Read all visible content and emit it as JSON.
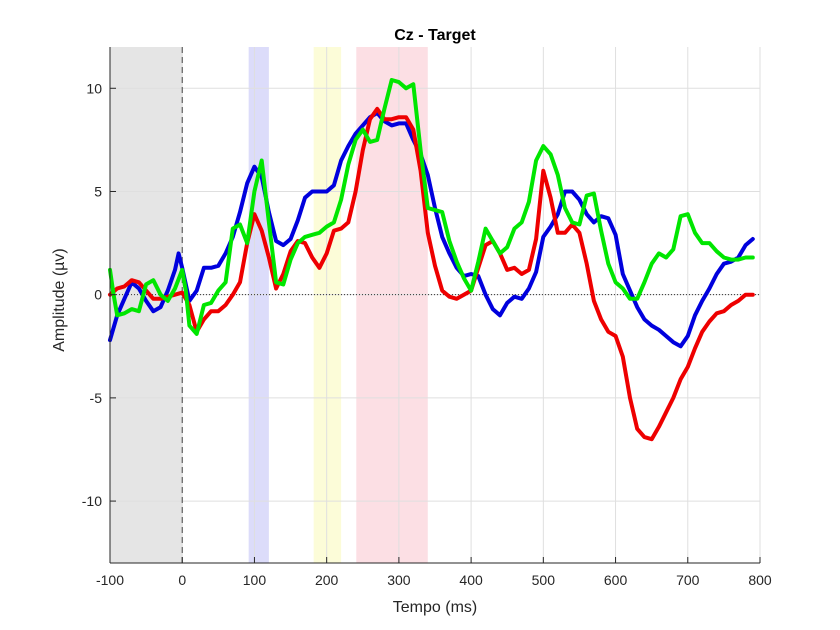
{
  "chart_data": {
    "type": "line",
    "title": "Cz - Target",
    "xlabel": "Tempo (ms)",
    "ylabel": "Amplitude (µv)",
    "xlim": [
      -100,
      800
    ],
    "ylim": [
      -13,
      12
    ],
    "xticks": [
      -100,
      0,
      100,
      200,
      300,
      400,
      500,
      600,
      700,
      800
    ],
    "yticks": [
      -10,
      -5,
      0,
      5,
      10
    ],
    "xtick_labels": [
      "-100",
      "0",
      "100",
      "200",
      "300",
      "400",
      "500",
      "600",
      "700",
      "800"
    ],
    "ytick_labels": [
      "-10",
      "-5",
      "0",
      "5",
      "10"
    ],
    "grid": true,
    "baseline_window": {
      "x0": -100,
      "x1": 0,
      "color": "#e5e5e5"
    },
    "highlight_windows": [
      {
        "x0": 92,
        "x1": 120,
        "color": "#dcdcfa"
      },
      {
        "x0": 182,
        "x1": 220,
        "color": "#fcfcd8"
      },
      {
        "x0": 241,
        "x1": 340,
        "color": "#fcdfe4"
      }
    ],
    "series": [
      {
        "color": "#0000dd",
        "points": [
          [
            -100,
            -2.2
          ],
          [
            -90,
            -1
          ],
          [
            -80,
            -0.2
          ],
          [
            -70,
            0.6
          ],
          [
            -60,
            0.3
          ],
          [
            -50,
            -0.3
          ],
          [
            -40,
            -0.8
          ],
          [
            -30,
            -0.6
          ],
          [
            -20,
            0.2
          ],
          [
            -10,
            1.2
          ],
          [
            -5,
            2
          ],
          [
            0,
            1.3
          ],
          [
            10,
            -0.3
          ],
          [
            20,
            0.2
          ],
          [
            30,
            1.3
          ],
          [
            40,
            1.3
          ],
          [
            50,
            1.4
          ],
          [
            60,
            2
          ],
          [
            70,
            2.8
          ],
          [
            80,
            4
          ],
          [
            90,
            5.4
          ],
          [
            100,
            6.2
          ],
          [
            110,
            5.7
          ],
          [
            120,
            4
          ],
          [
            130,
            2.6
          ],
          [
            140,
            2.4
          ],
          [
            150,
            2.7
          ],
          [
            160,
            3.6
          ],
          [
            170,
            4.7
          ],
          [
            180,
            5
          ],
          [
            200,
            5
          ],
          [
            210,
            5.3
          ],
          [
            220,
            6.5
          ],
          [
            230,
            7.2
          ],
          [
            240,
            7.8
          ],
          [
            250,
            8.2
          ],
          [
            260,
            8.6
          ],
          [
            270,
            8.8
          ],
          [
            280,
            8.4
          ],
          [
            290,
            8.2
          ],
          [
            300,
            8.3
          ],
          [
            310,
            8.3
          ],
          [
            320,
            7.5
          ],
          [
            330,
            6.8
          ],
          [
            340,
            5.8
          ],
          [
            350,
            4.2
          ],
          [
            360,
            2.8
          ],
          [
            370,
            2
          ],
          [
            380,
            1.3
          ],
          [
            390,
            0.9
          ],
          [
            400,
            1
          ],
          [
            410,
            0.9
          ],
          [
            420,
            0
          ],
          [
            430,
            -0.7
          ],
          [
            440,
            -1
          ],
          [
            450,
            -0.4
          ],
          [
            460,
            -0.1
          ],
          [
            470,
            -0.2
          ],
          [
            480,
            0.3
          ],
          [
            490,
            1.1
          ],
          [
            500,
            2.8
          ],
          [
            510,
            3.3
          ],
          [
            520,
            3.9
          ],
          [
            530,
            5
          ],
          [
            540,
            5
          ],
          [
            550,
            4.6
          ],
          [
            560,
            3.9
          ],
          [
            570,
            3.5
          ],
          [
            580,
            3.8
          ],
          [
            590,
            3.7
          ],
          [
            600,
            2.9
          ],
          [
            610,
            1
          ],
          [
            620,
            0.2
          ],
          [
            630,
            -0.6
          ],
          [
            640,
            -1.2
          ],
          [
            650,
            -1.5
          ],
          [
            660,
            -1.7
          ],
          [
            670,
            -2
          ],
          [
            680,
            -2.3
          ],
          [
            690,
            -2.5
          ],
          [
            700,
            -2
          ],
          [
            710,
            -1
          ],
          [
            720,
            -0.3
          ],
          [
            730,
            0.3
          ],
          [
            740,
            1
          ],
          [
            750,
            1.5
          ],
          [
            760,
            1.6
          ],
          [
            770,
            1.8
          ],
          [
            780,
            2.4
          ],
          [
            790,
            2.7
          ]
        ]
      },
      {
        "color": "#ee0000",
        "points": [
          [
            -100,
            0
          ],
          [
            -90,
            0.3
          ],
          [
            -80,
            0.4
          ],
          [
            -70,
            0.7
          ],
          [
            -60,
            0.6
          ],
          [
            -50,
            0.2
          ],
          [
            -40,
            -0.2
          ],
          [
            -30,
            -0.2
          ],
          [
            -20,
            -0.1
          ],
          [
            -10,
            0
          ],
          [
            0,
            0.1
          ],
          [
            10,
            -0.5
          ],
          [
            20,
            -1.8
          ],
          [
            30,
            -1.2
          ],
          [
            40,
            -0.8
          ],
          [
            50,
            -0.8
          ],
          [
            60,
            -0.5
          ],
          [
            70,
            0
          ],
          [
            80,
            0.6
          ],
          [
            90,
            2.5
          ],
          [
            100,
            3.9
          ],
          [
            110,
            3.1
          ],
          [
            120,
            1.8
          ],
          [
            130,
            0.3
          ],
          [
            140,
            1
          ],
          [
            150,
            2.1
          ],
          [
            160,
            2.6
          ],
          [
            170,
            2.5
          ],
          [
            180,
            1.8
          ],
          [
            190,
            1.3
          ],
          [
            200,
            2
          ],
          [
            210,
            3.1
          ],
          [
            220,
            3.2
          ],
          [
            230,
            3.5
          ],
          [
            240,
            5
          ],
          [
            250,
            7
          ],
          [
            260,
            8.5
          ],
          [
            270,
            9
          ],
          [
            280,
            8.5
          ],
          [
            290,
            8.5
          ],
          [
            300,
            8.6
          ],
          [
            310,
            8.6
          ],
          [
            320,
            8
          ],
          [
            330,
            6
          ],
          [
            340,
            3
          ],
          [
            350,
            1.4
          ],
          [
            360,
            0.2
          ],
          [
            370,
            -0.1
          ],
          [
            380,
            -0.2
          ],
          [
            390,
            0
          ],
          [
            400,
            0.2
          ],
          [
            410,
            1.3
          ],
          [
            420,
            2.4
          ],
          [
            430,
            2.6
          ],
          [
            440,
            2
          ],
          [
            450,
            1.2
          ],
          [
            460,
            1.3
          ],
          [
            470,
            1
          ],
          [
            480,
            1.2
          ],
          [
            490,
            2.7
          ],
          [
            500,
            6
          ],
          [
            510,
            4.7
          ],
          [
            520,
            3
          ],
          [
            530,
            3
          ],
          [
            540,
            3.4
          ],
          [
            550,
            3
          ],
          [
            560,
            1.5
          ],
          [
            570,
            -0.3
          ],
          [
            580,
            -1.2
          ],
          [
            590,
            -1.8
          ],
          [
            600,
            -2
          ],
          [
            610,
            -3
          ],
          [
            620,
            -5
          ],
          [
            630,
            -6.5
          ],
          [
            640,
            -6.9
          ],
          [
            650,
            -7
          ],
          [
            660,
            -6.4
          ],
          [
            670,
            -5.7
          ],
          [
            680,
            -5
          ],
          [
            690,
            -4.1
          ],
          [
            700,
            -3.5
          ],
          [
            710,
            -2.6
          ],
          [
            720,
            -1.8
          ],
          [
            730,
            -1.3
          ],
          [
            740,
            -0.9
          ],
          [
            750,
            -0.8
          ],
          [
            760,
            -0.5
          ],
          [
            770,
            -0.3
          ],
          [
            780,
            0
          ],
          [
            790,
            0
          ]
        ]
      },
      {
        "color": "#00e600",
        "points": [
          [
            -100,
            1.2
          ],
          [
            -95,
            0
          ],
          [
            -90,
            -1
          ],
          [
            -80,
            -0.9
          ],
          [
            -70,
            -0.7
          ],
          [
            -60,
            -0.8
          ],
          [
            -50,
            0.5
          ],
          [
            -40,
            0.7
          ],
          [
            -30,
            0
          ],
          [
            -20,
            -0.3
          ],
          [
            -10,
            0.3
          ],
          [
            0,
            1.2
          ],
          [
            5,
            0.2
          ],
          [
            10,
            -1.5
          ],
          [
            20,
            -1.9
          ],
          [
            30,
            -0.5
          ],
          [
            40,
            -0.4
          ],
          [
            50,
            0.2
          ],
          [
            60,
            0.6
          ],
          [
            70,
            3.2
          ],
          [
            80,
            3.4
          ],
          [
            90,
            2.5
          ],
          [
            100,
            5
          ],
          [
            110,
            6.5
          ],
          [
            120,
            3.5
          ],
          [
            130,
            0.6
          ],
          [
            140,
            0.5
          ],
          [
            150,
            1.7
          ],
          [
            160,
            2.5
          ],
          [
            170,
            2.8
          ],
          [
            180,
            2.9
          ],
          [
            190,
            3
          ],
          [
            200,
            3.3
          ],
          [
            210,
            3.5
          ],
          [
            220,
            4.6
          ],
          [
            230,
            6.3
          ],
          [
            240,
            7.5
          ],
          [
            250,
            8
          ],
          [
            260,
            7.4
          ],
          [
            270,
            7.5
          ],
          [
            280,
            9
          ],
          [
            290,
            10.4
          ],
          [
            300,
            10.3
          ],
          [
            310,
            10
          ],
          [
            320,
            10.2
          ],
          [
            330,
            7
          ],
          [
            340,
            4.2
          ],
          [
            350,
            4.1
          ],
          [
            360,
            4
          ],
          [
            370,
            2.6
          ],
          [
            380,
            1.6
          ],
          [
            390,
            0.8
          ],
          [
            400,
            0.2
          ],
          [
            410,
            1.6
          ],
          [
            420,
            3.2
          ],
          [
            430,
            2.6
          ],
          [
            440,
            2
          ],
          [
            450,
            2.3
          ],
          [
            460,
            3.2
          ],
          [
            470,
            3.5
          ],
          [
            480,
            4.5
          ],
          [
            490,
            6.5
          ],
          [
            500,
            7.2
          ],
          [
            510,
            6.8
          ],
          [
            520,
            5.8
          ],
          [
            530,
            4.2
          ],
          [
            540,
            3.5
          ],
          [
            550,
            3.4
          ],
          [
            560,
            4.8
          ],
          [
            570,
            4.9
          ],
          [
            580,
            3.1
          ],
          [
            590,
            1.5
          ],
          [
            600,
            0.6
          ],
          [
            610,
            0.3
          ],
          [
            620,
            -0.2
          ],
          [
            630,
            -0.2
          ],
          [
            640,
            0.6
          ],
          [
            650,
            1.5
          ],
          [
            660,
            2
          ],
          [
            670,
            1.8
          ],
          [
            680,
            2.2
          ],
          [
            690,
            3.8
          ],
          [
            700,
            3.9
          ],
          [
            710,
            3
          ],
          [
            720,
            2.5
          ],
          [
            730,
            2.5
          ],
          [
            740,
            2.1
          ],
          [
            750,
            1.8
          ],
          [
            760,
            1.7
          ],
          [
            770,
            1.7
          ],
          [
            780,
            1.8
          ],
          [
            790,
            1.8
          ]
        ]
      }
    ]
  }
}
